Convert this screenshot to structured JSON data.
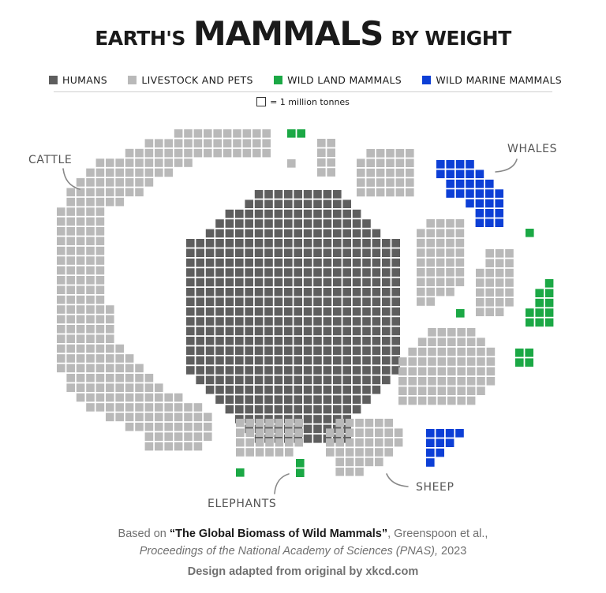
{
  "title": {
    "prefix": "EARTH'S",
    "main": "MAMMALS",
    "suffix": "BY WEIGHT"
  },
  "legend": [
    {
      "label": "HUMANS",
      "color": "#5e5e5e"
    },
    {
      "label": "LIVESTOCK AND PETS",
      "color": "#b9b9b9"
    },
    {
      "label": "WILD LAND MAMMALS",
      "color": "#1ba845"
    },
    {
      "label": "WILD MARINE MAMMALS",
      "color": "#0d3fd6"
    }
  ],
  "unit_label": "= 1 million tonnes",
  "annotations": {
    "cattle": "CATTLE",
    "whales": "WHALES",
    "elephants": "ELEPHANTS",
    "sheep": "SHEEP"
  },
  "source": {
    "prefix": "Based on",
    "paper_title": "“The Global Biomass of Wild Mammals”",
    "authors": ", Greenspoon et al.,",
    "journal": "Proceedings of the National Academy of Sciences (PNAS),",
    "year": "2023"
  },
  "credit": "Design adapted from original by xkcd.com",
  "chart_data": {
    "type": "waffle",
    "unit": "1 million tonnes",
    "categories": [
      "HUMANS",
      "LIVESTOCK AND PETS",
      "WILD LAND MAMMALS",
      "WILD MARINE MAMMALS"
    ],
    "values": [
      390,
      630,
      21,
      40
    ],
    "highlighted_groups": [
      {
        "label": "CATTLE",
        "category": "LIVESTOCK AND PETS",
        "value": 420
      },
      {
        "label": "SHEEP",
        "category": "LIVESTOCK AND PETS",
        "value": 38
      },
      {
        "label": "WHALES",
        "category": "WILD MARINE MAMMALS",
        "value": 30
      },
      {
        "label": "ELEPHANTS",
        "category": "WILD LAND MAMMALS",
        "value": 2
      }
    ]
  }
}
